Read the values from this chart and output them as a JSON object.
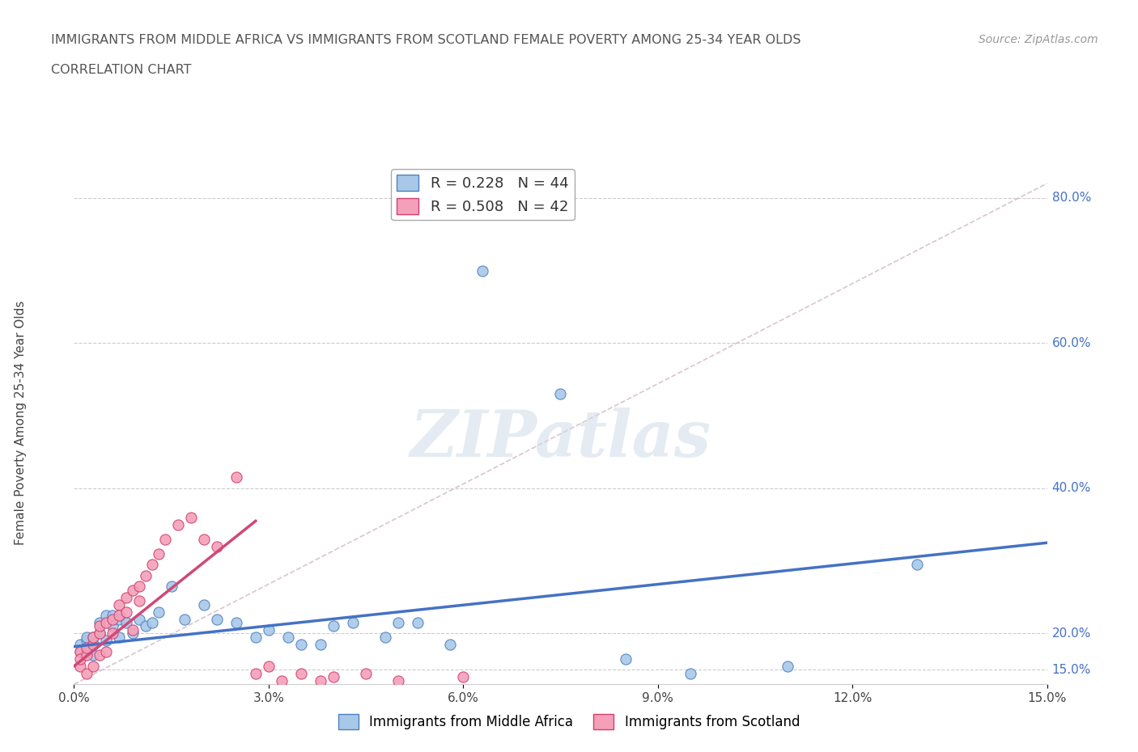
{
  "title_line1": "IMMIGRANTS FROM MIDDLE AFRICA VS IMMIGRANTS FROM SCOTLAND FEMALE POVERTY AMONG 25-34 YEAR OLDS",
  "title_line2": "CORRELATION CHART",
  "source": "Source: ZipAtlas.com",
  "ylabel": "Female Poverty Among 25-34 Year Olds",
  "xlim": [
    0.0,
    0.15
  ],
  "ylim": [
    0.13,
    0.85
  ],
  "xticks": [
    0.0,
    0.03,
    0.06,
    0.09,
    0.12,
    0.15
  ],
  "xtick_labels": [
    "0.0%",
    "3.0%",
    "6.0%",
    "9.0%",
    "12.0%",
    "15.0%"
  ],
  "yticks_right": [
    0.15,
    0.2,
    0.4,
    0.6,
    0.8
  ],
  "ytick_labels_right": [
    "15.0%",
    "20.0%",
    "40.0%",
    "60.0%",
    "80.0%"
  ],
  "blue_R": 0.228,
  "blue_N": 44,
  "pink_R": 0.508,
  "pink_N": 42,
  "blue_color": "#a8c8e8",
  "pink_color": "#f4a0b8",
  "blue_edge_color": "#5080c0",
  "pink_edge_color": "#d04070",
  "blue_line_color": "#4472c4",
  "pink_line_color": "#d04878",
  "dashed_line_color": "#d0b8c0",
  "watermark": "ZIPatlas",
  "watermark_color": "#d0dce8",
  "blue_scatter_x": [
    0.001,
    0.001,
    0.002,
    0.002,
    0.002,
    0.003,
    0.003,
    0.003,
    0.004,
    0.004,
    0.005,
    0.005,
    0.006,
    0.006,
    0.007,
    0.007,
    0.008,
    0.009,
    0.01,
    0.011,
    0.012,
    0.013,
    0.015,
    0.017,
    0.02,
    0.022,
    0.025,
    0.028,
    0.03,
    0.033,
    0.035,
    0.038,
    0.04,
    0.043,
    0.048,
    0.05,
    0.053,
    0.058,
    0.063,
    0.075,
    0.085,
    0.095,
    0.11,
    0.13
  ],
  "blue_scatter_y": [
    0.185,
    0.175,
    0.19,
    0.195,
    0.175,
    0.185,
    0.195,
    0.17,
    0.2,
    0.215,
    0.225,
    0.19,
    0.21,
    0.225,
    0.22,
    0.195,
    0.215,
    0.2,
    0.22,
    0.21,
    0.215,
    0.23,
    0.265,
    0.22,
    0.24,
    0.22,
    0.215,
    0.195,
    0.205,
    0.195,
    0.185,
    0.185,
    0.21,
    0.215,
    0.195,
    0.215,
    0.215,
    0.185,
    0.7,
    0.53,
    0.165,
    0.145,
    0.155,
    0.295
  ],
  "pink_scatter_x": [
    0.001,
    0.001,
    0.001,
    0.002,
    0.002,
    0.002,
    0.003,
    0.003,
    0.003,
    0.004,
    0.004,
    0.004,
    0.005,
    0.005,
    0.006,
    0.006,
    0.007,
    0.007,
    0.008,
    0.008,
    0.009,
    0.009,
    0.01,
    0.01,
    0.011,
    0.012,
    0.013,
    0.014,
    0.016,
    0.018,
    0.02,
    0.022,
    0.025,
    0.028,
    0.03,
    0.032,
    0.035,
    0.038,
    0.04,
    0.045,
    0.05,
    0.06
  ],
  "pink_scatter_y": [
    0.155,
    0.175,
    0.165,
    0.17,
    0.18,
    0.145,
    0.185,
    0.195,
    0.155,
    0.2,
    0.21,
    0.17,
    0.215,
    0.175,
    0.22,
    0.2,
    0.24,
    0.225,
    0.25,
    0.23,
    0.26,
    0.205,
    0.265,
    0.245,
    0.28,
    0.295,
    0.31,
    0.33,
    0.35,
    0.36,
    0.33,
    0.32,
    0.415,
    0.145,
    0.155,
    0.135,
    0.145,
    0.135,
    0.14,
    0.145,
    0.135,
    0.14
  ]
}
